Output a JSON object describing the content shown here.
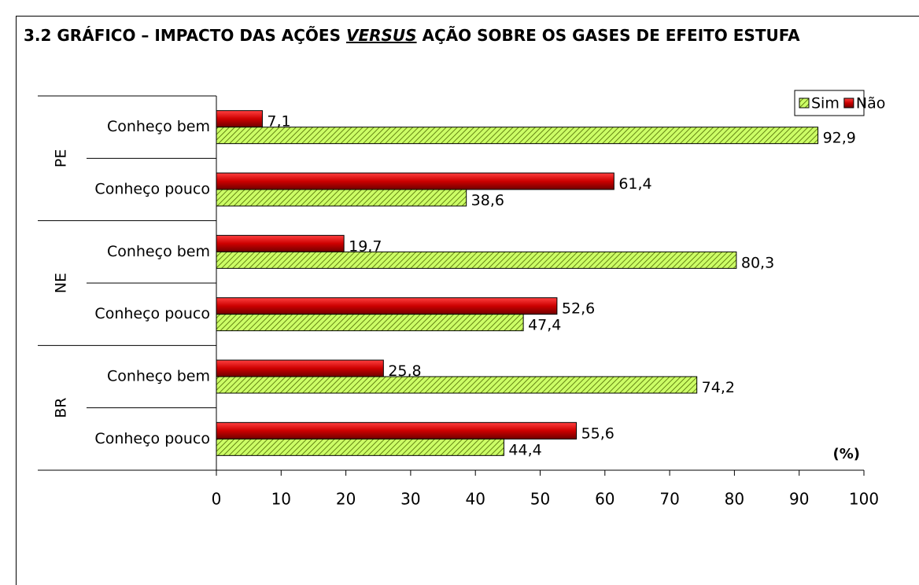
{
  "chart_data": {
    "type": "bar",
    "orientation": "horizontal",
    "title_parts": [
      "3.2 GRÁFICO – IMPACTO DAS AÇÕES ",
      "VERSUS",
      " AÇÃO SOBRE OS GASES DE EFEITO ESTUFA"
    ],
    "groups": [
      {
        "name": "PE",
        "categories": [
          "Conheço bem",
          "Conheço pouco"
        ]
      },
      {
        "name": "NE",
        "categories": [
          "Conheço bem",
          "Conheço pouco"
        ]
      },
      {
        "name": "BR",
        "categories": [
          "Conheço bem",
          "Conheço pouco"
        ]
      }
    ],
    "series": [
      {
        "name": "Não",
        "color": "#cc0000",
        "values": [
          7.1,
          61.4,
          19.7,
          52.6,
          25.8,
          55.6
        ],
        "value_labels": [
          "7,1",
          "61,4",
          "19,7",
          "52,6",
          "25,8",
          "55,6"
        ]
      },
      {
        "name": "Sim",
        "color": "#ccff66",
        "values": [
          92.9,
          38.6,
          80.3,
          47.4,
          74.2,
          44.4
        ],
        "value_labels": [
          "92,9",
          "38,6",
          "80,3",
          "47,4",
          "74,2",
          "44,4"
        ]
      }
    ],
    "legend_order": [
      1,
      0
    ],
    "xlabel": "(%)",
    "xlim": [
      0,
      100
    ],
    "xticks": [
      0,
      10,
      20,
      30,
      40,
      50,
      60,
      70,
      80,
      90,
      100
    ],
    "grid": false,
    "legend": "top-right"
  }
}
